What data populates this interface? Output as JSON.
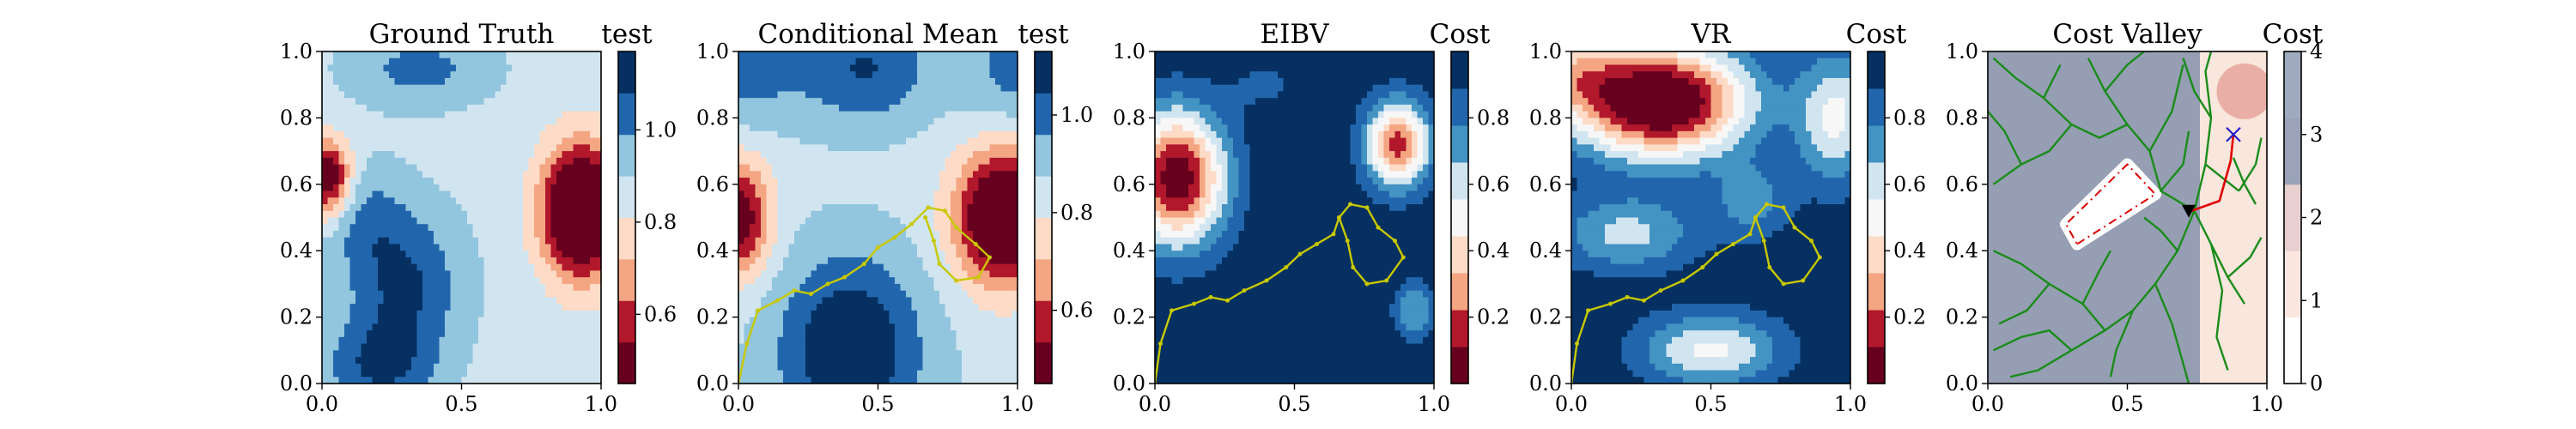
{
  "figure": {
    "colors": {
      "rdbu": [
        "#67001f",
        "#b2182b",
        "#d6604d",
        "#f4a582",
        "#fddbc7",
        "#f7f7f7",
        "#d1e5f0",
        "#92c5de",
        "#4393c3",
        "#2166ac",
        "#053061"
      ],
      "path": "#c8c800",
      "tree": "#1a8c1a",
      "route": "#e00000",
      "obstacle_outline": "#e00000",
      "marker_current": "#000000",
      "marker_target": "#2020c8"
    }
  },
  "chart_data": [
    {
      "type": "heatmap",
      "title": "Ground Truth",
      "xlabel": "",
      "ylabel": "",
      "xlim": [
        0,
        1
      ],
      "ylim": [
        0,
        1
      ],
      "xticks": [
        "0.0",
        "0.5",
        "1.0"
      ],
      "yticks": [
        "0.0",
        "0.2",
        "0.4",
        "0.6",
        "0.8",
        "1.0"
      ],
      "colorbar": {
        "title": "test",
        "range": [
          0.45,
          1.17
        ],
        "ticks": [
          "0.6",
          "0.8",
          "1.0"
        ],
        "tick_values": [
          0.6,
          0.8,
          1.0
        ],
        "levels": 8
      },
      "bumps": [
        {
          "x": 0.93,
          "y": 0.52,
          "sx": 0.1,
          "sy": 0.14,
          "a": -0.62
        },
        {
          "x": 0.02,
          "y": 0.62,
          "sx": 0.06,
          "sy": 0.08,
          "a": -0.45
        },
        {
          "x": 0.3,
          "y": 0.3,
          "sx": 0.14,
          "sy": 0.16,
          "a": 0.22
        },
        {
          "x": 0.2,
          "y": 0.05,
          "sx": 0.14,
          "sy": 0.1,
          "a": 0.2
        },
        {
          "x": 0.35,
          "y": 0.95,
          "sx": 0.18,
          "sy": 0.08,
          "a": 0.15
        },
        {
          "x": 0.15,
          "y": 0.5,
          "sx": 0.1,
          "sy": 0.12,
          "a": 0.12
        }
      ],
      "base": 0.87
    },
    {
      "type": "heatmap",
      "title": "Conditional Mean",
      "xlabel": "",
      "ylabel": "",
      "xlim": [
        0,
        1
      ],
      "ylim": [
        0,
        1
      ],
      "xticks": [
        "0.0",
        "0.5",
        "1.0"
      ],
      "yticks": [
        "0.0",
        "0.2",
        "0.4",
        "0.6",
        "0.8",
        "1.0"
      ],
      "colorbar": {
        "title": "test",
        "range": [
          0.45,
          1.13
        ],
        "ticks": [
          "0.6",
          "0.8",
          "1.0"
        ],
        "tick_values": [
          0.6,
          0.8,
          1.0
        ],
        "levels": 8
      },
      "bumps": [
        {
          "x": 0.95,
          "y": 0.5,
          "sx": 0.12,
          "sy": 0.14,
          "a": -0.55
        },
        {
          "x": 0.0,
          "y": 0.5,
          "sx": 0.08,
          "sy": 0.12,
          "a": -0.4
        },
        {
          "x": 0.4,
          "y": 0.1,
          "sx": 0.18,
          "sy": 0.2,
          "a": 0.3
        },
        {
          "x": 0.45,
          "y": 0.95,
          "sx": 0.18,
          "sy": 0.12,
          "a": 0.2
        },
        {
          "x": 0.0,
          "y": 0.95,
          "sx": 0.14,
          "sy": 0.12,
          "a": 0.15
        },
        {
          "x": 1.0,
          "y": 0.95,
          "sx": 0.12,
          "sy": 0.12,
          "a": 0.15
        }
      ],
      "base": 0.85,
      "path": [
        [
          0.0,
          0.0
        ],
        [
          0.03,
          0.12
        ],
        [
          0.07,
          0.22
        ],
        [
          0.14,
          0.25
        ],
        [
          0.2,
          0.28
        ],
        [
          0.26,
          0.27
        ],
        [
          0.32,
          0.3
        ],
        [
          0.38,
          0.32
        ],
        [
          0.45,
          0.36
        ],
        [
          0.5,
          0.41
        ],
        [
          0.56,
          0.44
        ],
        [
          0.62,
          0.48
        ],
        [
          0.68,
          0.53
        ],
        [
          0.74,
          0.52
        ],
        [
          0.78,
          0.47
        ],
        [
          0.85,
          0.42
        ],
        [
          0.9,
          0.38
        ],
        [
          0.86,
          0.32
        ],
        [
          0.78,
          0.31
        ],
        [
          0.72,
          0.36
        ],
        [
          0.7,
          0.43
        ],
        [
          0.67,
          0.5
        ]
      ]
    },
    {
      "type": "heatmap",
      "title": "EIBV",
      "xlabel": "",
      "ylabel": "",
      "xlim": [
        0,
        1
      ],
      "ylim": [
        0,
        1
      ],
      "xticks": [
        "0.0",
        "0.5",
        "1.0"
      ],
      "yticks": [
        "0.0",
        "0.2",
        "0.4",
        "0.6",
        "0.8",
        "1.0"
      ],
      "colorbar": {
        "title": "Cost",
        "range": [
          0.0,
          1.0
        ],
        "ticks": [
          "0.2",
          "0.4",
          "0.6",
          "0.8"
        ],
        "tick_values": [
          0.2,
          0.4,
          0.6,
          0.8
        ],
        "levels": 9
      },
      "bumps": [
        {
          "x": 0.08,
          "y": 0.62,
          "sx": 0.12,
          "sy": 0.14,
          "a": -0.95
        },
        {
          "x": 0.87,
          "y": 0.72,
          "sx": 0.08,
          "sy": 0.09,
          "a": -0.8
        },
        {
          "x": 0.4,
          "y": 0.9,
          "sx": 0.1,
          "sy": 0.06,
          "a": -0.1
        },
        {
          "x": 0.93,
          "y": 0.22,
          "sx": 0.05,
          "sy": 0.06,
          "a": -0.3
        }
      ],
      "base": 0.97,
      "path": [
        [
          0.0,
          0.0
        ],
        [
          0.02,
          0.12
        ],
        [
          0.06,
          0.22
        ],
        [
          0.14,
          0.24
        ],
        [
          0.2,
          0.26
        ],
        [
          0.26,
          0.25
        ],
        [
          0.32,
          0.28
        ],
        [
          0.4,
          0.31
        ],
        [
          0.47,
          0.35
        ],
        [
          0.52,
          0.39
        ],
        [
          0.58,
          0.42
        ],
        [
          0.64,
          0.45
        ],
        [
          0.66,
          0.5
        ],
        [
          0.7,
          0.54
        ],
        [
          0.76,
          0.53
        ],
        [
          0.8,
          0.47
        ],
        [
          0.86,
          0.43
        ],
        [
          0.89,
          0.38
        ],
        [
          0.83,
          0.31
        ],
        [
          0.76,
          0.3
        ],
        [
          0.71,
          0.35
        ],
        [
          0.69,
          0.43
        ],
        [
          0.66,
          0.5
        ]
      ]
    },
    {
      "type": "heatmap",
      "title": "VR",
      "xlabel": "",
      "ylabel": "",
      "xlim": [
        0,
        1
      ],
      "ylim": [
        0,
        1
      ],
      "xticks": [
        "0.0",
        "0.5",
        "1.0"
      ],
      "yticks": [
        "0.0",
        "0.2",
        "0.4",
        "0.6",
        "0.8",
        "1.0"
      ],
      "colorbar": {
        "title": "Cost",
        "range": [
          0.0,
          1.0
        ],
        "ticks": [
          "0.2",
          "0.4",
          "0.6",
          "0.8"
        ],
        "tick_values": [
          0.2,
          0.4,
          0.6,
          0.8
        ],
        "levels": 9
      },
      "bumps": [
        {
          "x": 0.32,
          "y": 0.85,
          "sx": 0.22,
          "sy": 0.12,
          "a": -1.1
        },
        {
          "x": 0.0,
          "y": 0.95,
          "sx": 0.12,
          "sy": 0.1,
          "a": -0.4
        },
        {
          "x": 0.5,
          "y": 0.1,
          "sx": 0.18,
          "sy": 0.08,
          "a": -0.45
        },
        {
          "x": 0.95,
          "y": 0.8,
          "sx": 0.1,
          "sy": 0.14,
          "a": -0.45
        },
        {
          "x": 0.2,
          "y": 0.45,
          "sx": 0.18,
          "sy": 0.08,
          "a": -0.35
        },
        {
          "x": 0.65,
          "y": 0.55,
          "sx": 0.1,
          "sy": 0.08,
          "a": -0.25
        }
      ],
      "base": 0.98,
      "path": [
        [
          0.0,
          0.0
        ],
        [
          0.02,
          0.12
        ],
        [
          0.06,
          0.22
        ],
        [
          0.14,
          0.24
        ],
        [
          0.2,
          0.26
        ],
        [
          0.26,
          0.25
        ],
        [
          0.32,
          0.28
        ],
        [
          0.4,
          0.31
        ],
        [
          0.47,
          0.35
        ],
        [
          0.52,
          0.39
        ],
        [
          0.58,
          0.42
        ],
        [
          0.64,
          0.45
        ],
        [
          0.66,
          0.5
        ],
        [
          0.7,
          0.54
        ],
        [
          0.76,
          0.53
        ],
        [
          0.8,
          0.47
        ],
        [
          0.86,
          0.43
        ],
        [
          0.89,
          0.38
        ],
        [
          0.83,
          0.31
        ],
        [
          0.76,
          0.3
        ],
        [
          0.71,
          0.35
        ],
        [
          0.69,
          0.43
        ],
        [
          0.66,
          0.5
        ]
      ]
    },
    {
      "type": "heatmap",
      "title": "Cost Valley",
      "xlabel": "",
      "ylabel": "",
      "xlim": [
        0,
        1
      ],
      "ylim": [
        0,
        1
      ],
      "xticks": [
        "0.0",
        "0.5",
        "1.0"
      ],
      "yticks": [
        "0.0",
        "0.2",
        "0.4",
        "0.6",
        "0.8",
        "1.0"
      ],
      "colorbar": {
        "title": "Cost",
        "range": [
          0,
          4
        ],
        "ticks": [
          "0",
          "1",
          "2",
          "3",
          "4"
        ],
        "tick_values": [
          0,
          1,
          2,
          3,
          4
        ],
        "colors": [
          "#ffffff",
          "#fbe6e0",
          "#e8cfd0",
          "#9aa3b8",
          "#a0aabf"
        ]
      },
      "valley": {
        "boundary_x": 0.76,
        "left_color": "#8f9ab0",
        "right_color": "#f9e6dd",
        "blob": {
          "x": 0.92,
          "y": 0.88,
          "r": 0.1,
          "color": "#e6a39b"
        },
        "obstacle": [
          [
            0.32,
            0.42
          ],
          [
            0.6,
            0.57
          ],
          [
            0.5,
            0.66
          ],
          [
            0.28,
            0.48
          ]
        ],
        "obstacle_halo": "#ffffff"
      },
      "tree": [
        [
          [
            0.74,
            0.52
          ],
          [
            0.62,
            0.58
          ],
          [
            0.58,
            0.7
          ],
          [
            0.5,
            0.78
          ],
          [
            0.42,
            0.88
          ],
          [
            0.36,
            0.98
          ]
        ],
        [
          [
            0.58,
            0.7
          ],
          [
            0.66,
            0.82
          ],
          [
            0.7,
            0.96
          ]
        ],
        [
          [
            0.5,
            0.78
          ],
          [
            0.4,
            0.74
          ],
          [
            0.3,
            0.78
          ],
          [
            0.2,
            0.86
          ],
          [
            0.1,
            0.92
          ],
          [
            0.02,
            0.98
          ]
        ],
        [
          [
            0.3,
            0.78
          ],
          [
            0.22,
            0.7
          ],
          [
            0.12,
            0.66
          ],
          [
            0.02,
            0.6
          ]
        ],
        [
          [
            0.12,
            0.66
          ],
          [
            0.06,
            0.76
          ],
          [
            0.0,
            0.82
          ]
        ],
        [
          [
            0.42,
            0.88
          ],
          [
            0.5,
            0.96
          ],
          [
            0.56,
            1.0
          ]
        ],
        [
          [
            0.2,
            0.86
          ],
          [
            0.26,
            0.96
          ]
        ],
        [
          [
            0.74,
            0.52
          ],
          [
            0.68,
            0.4
          ],
          [
            0.6,
            0.3
          ],
          [
            0.52,
            0.22
          ],
          [
            0.42,
            0.16
          ],
          [
            0.3,
            0.1
          ],
          [
            0.18,
            0.04
          ],
          [
            0.08,
            0.02
          ]
        ],
        [
          [
            0.6,
            0.3
          ],
          [
            0.66,
            0.18
          ],
          [
            0.7,
            0.06
          ],
          [
            0.72,
            0.0
          ]
        ],
        [
          [
            0.52,
            0.22
          ],
          [
            0.46,
            0.1
          ],
          [
            0.44,
            0.02
          ]
        ],
        [
          [
            0.42,
            0.16
          ],
          [
            0.34,
            0.24
          ],
          [
            0.22,
            0.3
          ],
          [
            0.12,
            0.36
          ],
          [
            0.02,
            0.4
          ]
        ],
        [
          [
            0.22,
            0.3
          ],
          [
            0.14,
            0.22
          ],
          [
            0.04,
            0.18
          ]
        ],
        [
          [
            0.3,
            0.1
          ],
          [
            0.22,
            0.16
          ],
          [
            0.12,
            0.14
          ],
          [
            0.02,
            0.1
          ]
        ],
        [
          [
            0.74,
            0.52
          ],
          [
            0.8,
            0.42
          ],
          [
            0.86,
            0.32
          ],
          [
            0.92,
            0.24
          ]
        ],
        [
          [
            0.8,
            0.42
          ],
          [
            0.84,
            0.28
          ],
          [
            0.82,
            0.14
          ],
          [
            0.86,
            0.04
          ]
        ],
        [
          [
            0.86,
            0.32
          ],
          [
            0.94,
            0.38
          ],
          [
            0.98,
            0.44
          ]
        ],
        [
          [
            0.74,
            0.52
          ],
          [
            0.78,
            0.66
          ],
          [
            0.8,
            0.8
          ],
          [
            0.78,
            0.94
          ],
          [
            0.8,
            1.0
          ]
        ],
        [
          [
            0.78,
            0.66
          ],
          [
            0.84,
            0.62
          ],
          [
            0.9,
            0.58
          ]
        ],
        [
          [
            0.8,
            0.8
          ],
          [
            0.74,
            0.88
          ],
          [
            0.7,
            0.98
          ]
        ],
        [
          [
            0.62,
            0.58
          ],
          [
            0.7,
            0.66
          ],
          [
            0.72,
            0.76
          ]
        ],
        [
          [
            0.68,
            0.4
          ],
          [
            0.62,
            0.46
          ],
          [
            0.56,
            0.5
          ]
        ],
        [
          [
            0.34,
            0.24
          ],
          [
            0.4,
            0.34
          ],
          [
            0.44,
            0.4
          ]
        ],
        [
          [
            0.9,
            0.58
          ],
          [
            0.96,
            0.66
          ],
          [
            0.98,
            0.74
          ]
        ],
        [
          [
            0.88,
            0.68
          ],
          [
            0.92,
            0.6
          ],
          [
            0.96,
            0.54
          ]
        ]
      ],
      "route": [
        [
          0.73,
          0.52
        ],
        [
          0.83,
          0.55
        ],
        [
          0.87,
          0.67
        ],
        [
          0.88,
          0.75
        ]
      ],
      "current": [
        0.72,
        0.52
      ],
      "target": [
        0.88,
        0.75
      ]
    }
  ]
}
